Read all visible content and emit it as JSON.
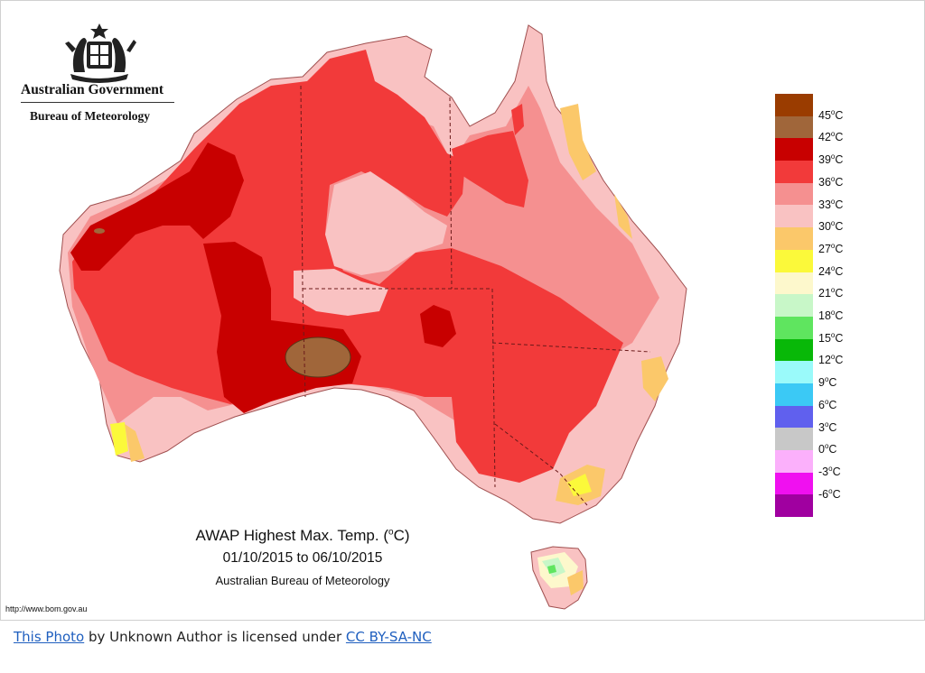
{
  "header": {
    "government": "Australian Government",
    "bureau": "Bureau of Meteorology",
    "logo_icon": "coat-of-arms-icon"
  },
  "map": {
    "title_prefix": "AWAP Highest Max. Temp. (",
    "title_degree": "o",
    "title_suffix": "C)",
    "date_range": "01/10/2015 to 06/10/2015",
    "credit": "Australian Bureau of Meteorology",
    "source_url": "http://www.bom.gov.au"
  },
  "legend": {
    "unit": "C",
    "degree_mark": "o",
    "bins": [
      {
        "label": "45",
        "color": "#9a3c00"
      },
      {
        "label": "42",
        "color": "#a0663a"
      },
      {
        "label": "39",
        "color": "#c80000"
      },
      {
        "label": "36",
        "color": "#f23a3a"
      },
      {
        "label": "33",
        "color": "#f59090"
      },
      {
        "label": "30",
        "color": "#f9c2c2"
      },
      {
        "label": "27",
        "color": "#fbc86a"
      },
      {
        "label": "24",
        "color": "#fbf93a"
      },
      {
        "label": "21",
        "color": "#fdf8cc"
      },
      {
        "label": "18",
        "color": "#c8f7c8"
      },
      {
        "label": "15",
        "color": "#5fe55f"
      },
      {
        "label": "12",
        "color": "#08b808"
      },
      {
        "label": "9",
        "color": "#9afafa"
      },
      {
        "label": "6",
        "color": "#3bc9f5"
      },
      {
        "label": "3",
        "color": "#6060ee"
      },
      {
        "label": "0",
        "color": "#c8c8c8"
      },
      {
        "label": "-3",
        "color": "#fbb0fb"
      },
      {
        "label": "-6",
        "color": "#f010f0"
      },
      {
        "label": "",
        "color": "#a000a0"
      }
    ]
  },
  "attribution": {
    "link1": "This Photo",
    "middle": " by Unknown Author is licensed under ",
    "link2": "CC BY-SA-NC"
  }
}
